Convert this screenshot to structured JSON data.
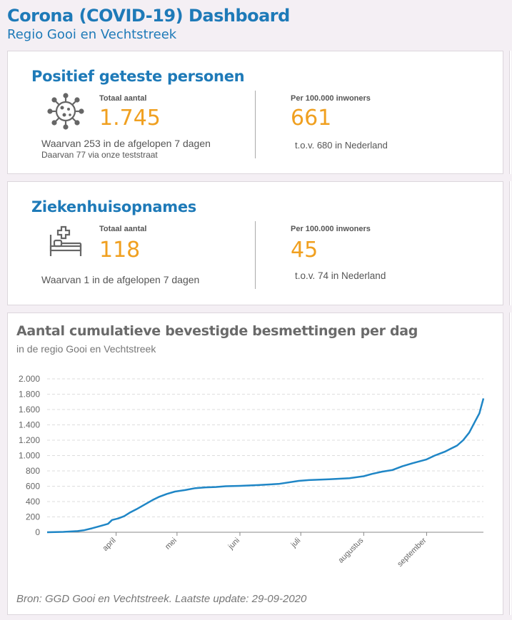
{
  "header": {
    "title": "Corona (COVID-19) Dashboard",
    "subtitle": "Regio Gooi en Vechtstreek"
  },
  "positive": {
    "title": "Positief geteste personen",
    "icon": "virus-icon",
    "total_label": "Totaal aantal",
    "total_value": "1.745",
    "note1": "Waarvan 253 in de afgelopen 7 dagen",
    "note2": "Daarvan 77 via onze teststraat",
    "per_label": "Per 100.000 inwoners",
    "per_value": "661",
    "per_note": "t.o.v. 680 in Nederland"
  },
  "hospital": {
    "title": "Ziekenhuisopnames",
    "icon": "hospital-bed-icon",
    "total_label": "Totaal aantal",
    "total_value": "118",
    "note1": "Waarvan 1 in de afgelopen 7 dagen",
    "per_label": "Per 100.000 inwoners",
    "per_value": "45",
    "per_note": "t.o.v. 74 in Nederland"
  },
  "colors": {
    "accent": "#1e7ab8",
    "highlight": "#f0a020",
    "line": "#1f86c6"
  },
  "chart_section": {
    "title": "Aantal cumulatieve bevestigde besmettingen per dag",
    "subtitle": "in de regio Gooi en Vechtstreek",
    "source": "Bron: GGD Gooi en Vechtstreek. Laatste update: 29-09-2020"
  },
  "chart_data": {
    "type": "line",
    "title": "Aantal cumulatieve bevestigde besmettingen per dag",
    "xlabel": "",
    "ylabel": "",
    "ylim": [
      0,
      2000
    ],
    "yticks": [
      0,
      200,
      400,
      600,
      800,
      1000,
      1200,
      1400,
      1600,
      1800,
      2000
    ],
    "ytick_labels": [
      "0",
      "200",
      "400",
      "600",
      "800",
      "1.000",
      "1.200",
      "1.400",
      "1.600",
      "1.800",
      "2.000"
    ],
    "xticks": [
      {
        "date": "2020-04-01",
        "label": "april"
      },
      {
        "date": "2020-05-01",
        "label": "mei"
      },
      {
        "date": "2020-06-01",
        "label": "juni"
      },
      {
        "date": "2020-07-01",
        "label": "juli"
      },
      {
        "date": "2020-08-01",
        "label": "augustus"
      },
      {
        "date": "2020-09-01",
        "label": "september"
      }
    ],
    "xlim": [
      "2020-02-27",
      "2020-09-29"
    ],
    "grid": true,
    "legend": "none",
    "series": [
      {
        "x": [
          "2020-02-27",
          "2020-03-06",
          "2020-03-13",
          "2020-03-16",
          "2020-03-20",
          "2020-03-24",
          "2020-03-28",
          "2020-03-30",
          "2020-04-02",
          "2020-04-05",
          "2020-04-08",
          "2020-04-11",
          "2020-04-15",
          "2020-04-19",
          "2020-04-22",
          "2020-04-26",
          "2020-04-30",
          "2020-05-05",
          "2020-05-10",
          "2020-05-15",
          "2020-05-20",
          "2020-05-25",
          "2020-06-01",
          "2020-06-10",
          "2020-06-20",
          "2020-06-30",
          "2020-07-05",
          "2020-07-15",
          "2020-07-25",
          "2020-08-01",
          "2020-08-05",
          "2020-08-10",
          "2020-08-15",
          "2020-08-20",
          "2020-08-25",
          "2020-09-01",
          "2020-09-05",
          "2020-09-10",
          "2020-09-13",
          "2020-09-16",
          "2020-09-19",
          "2020-09-22",
          "2020-09-25",
          "2020-09-27",
          "2020-09-29"
        ],
        "y": [
          0,
          5,
          15,
          25,
          50,
          80,
          110,
          160,
          180,
          210,
          260,
          300,
          360,
          420,
          460,
          500,
          530,
          550,
          575,
          585,
          590,
          600,
          605,
          615,
          630,
          670,
          680,
          690,
          705,
          730,
          760,
          790,
          810,
          860,
          900,
          950,
          1000,
          1050,
          1090,
          1130,
          1200,
          1300,
          1450,
          1550,
          1745
        ]
      }
    ]
  }
}
